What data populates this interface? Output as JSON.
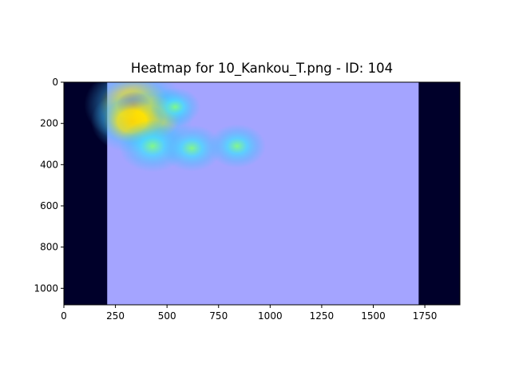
{
  "chart_data": {
    "type": "heatmap",
    "title": "Heatmap for 10_Kankou_T.png - ID: 104",
    "xlabel": "",
    "ylabel": "",
    "xlim": [
      0,
      1920
    ],
    "ylim": [
      1080,
      0
    ],
    "x_ticks": [
      0,
      250,
      500,
      750,
      1000,
      1250,
      1500,
      1750
    ],
    "y_ticks": [
      0,
      200,
      400,
      600,
      800,
      1000
    ],
    "grid": false,
    "image_extent": [
      0,
      1920,
      0,
      1080
    ],
    "screenshot_extent": [
      210,
      1720,
      0,
      1080
    ],
    "background_color": "#00002a",
    "overlay_color": "#a4a4ff",
    "hotspots": [
      {
        "x": 340,
        "y": 110,
        "intensity": 1.0
      },
      {
        "x": 420,
        "y": 170,
        "intensity": 0.8
      },
      {
        "x": 330,
        "y": 190,
        "intensity": 0.75
      },
      {
        "x": 430,
        "y": 310,
        "intensity": 0.55
      },
      {
        "x": 620,
        "y": 320,
        "intensity": 0.45
      },
      {
        "x": 840,
        "y": 310,
        "intensity": 0.4
      },
      {
        "x": 540,
        "y": 120,
        "intensity": 0.3
      }
    ]
  }
}
